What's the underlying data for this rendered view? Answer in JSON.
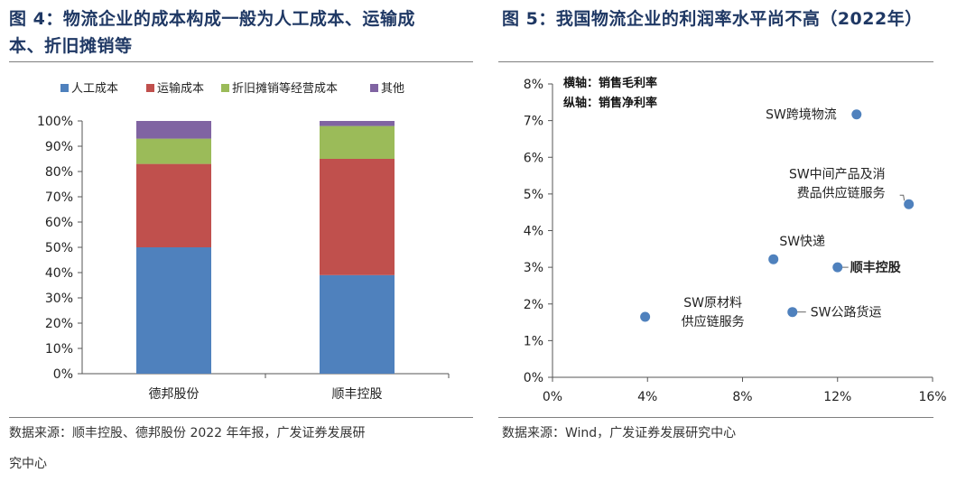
{
  "left": {
    "title": "图 4：物流企业的成本构成一般为人工成本、运输成本、折旧摊销等",
    "title_line1": "图 4：物流企业的成本构成一般为人工成本、运输成",
    "title_line2": "本、折旧摊销等",
    "source": "数据来源：顺丰控股、德邦股份 2022 年年报，广发证券发展研究中心",
    "source_line1": "数据来源：顺丰控股、德邦股份 2022 年年报，广发证券发展研",
    "source_line2": "究中心"
  },
  "right": {
    "title": "图 5：我国物流企业的利润率水平尚不高（2022年）",
    "source": "数据来源：Wind，广发证券发展研究中心"
  },
  "chart_data": [
    {
      "type": "bar",
      "stacked": true,
      "categories": [
        "德邦股份",
        "顺丰控股"
      ],
      "series": [
        {
          "name": "人工成本",
          "values": [
            0.5,
            0.39
          ],
          "color": "#4f81bd"
        },
        {
          "name": "运输成本",
          "values": [
            0.33,
            0.46
          ],
          "color": "#c0504d"
        },
        {
          "name": "折旧摊销等经营成本",
          "values": [
            0.1,
            0.13
          ],
          "color": "#9bbb59"
        },
        {
          "name": "其他",
          "values": [
            0.07,
            0.02
          ],
          "color": "#8064a2"
        }
      ],
      "ylim": [
        0,
        1
      ],
      "yticks": [
        "0%",
        "10%",
        "20%",
        "30%",
        "40%",
        "50%",
        "60%",
        "70%",
        "80%",
        "90%",
        "100%"
      ],
      "legend": "top",
      "grid": false
    },
    {
      "type": "scatter",
      "annotation_lines": [
        "横轴：销售毛利率",
        "纵轴：销售净利率"
      ],
      "xlim": [
        0,
        0.16
      ],
      "ylim": [
        0,
        0.08
      ],
      "xticks": [
        "0%",
        "4%",
        "8%",
        "12%",
        "16%"
      ],
      "yticks": [
        "0%",
        "1%",
        "2%",
        "3%",
        "4%",
        "5%",
        "6%",
        "7%",
        "8%"
      ],
      "points": [
        {
          "label": "SW跨境物流",
          "x": 0.128,
          "y": 0.0717
        },
        {
          "label": "SW中间产品及消费品供应链服务",
          "label_lines": [
            "SW中间产品及消",
            "费品供应链服务"
          ],
          "x": 0.15,
          "y": 0.0472
        },
        {
          "label": "SW快递",
          "x": 0.093,
          "y": 0.0322
        },
        {
          "label": "顺丰控股",
          "x": 0.12,
          "y": 0.03,
          "bold": true
        },
        {
          "label": "SW原材料供应链服务",
          "label_lines": [
            "SW原材料",
            "供应链服务"
          ],
          "x": 0.039,
          "y": 0.0165
        },
        {
          "label": "SW公路货运",
          "x": 0.101,
          "y": 0.0178
        }
      ],
      "marker_color": "#4f81bd",
      "grid": false
    }
  ]
}
